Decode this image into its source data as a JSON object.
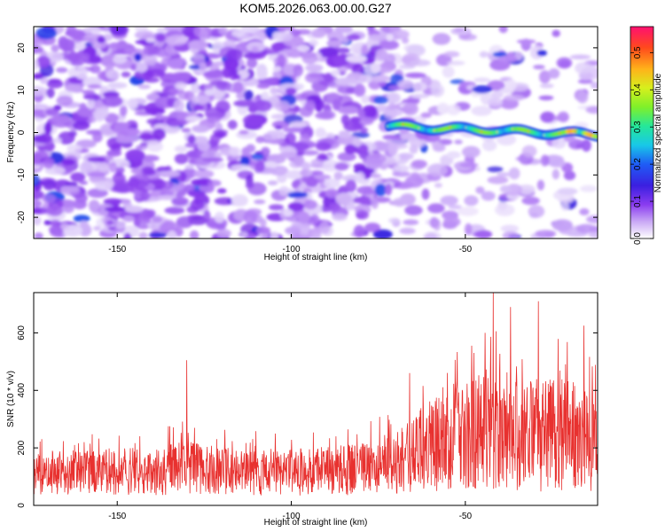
{
  "figure": {
    "title": "KOM5.2026.063.00.00.G27"
  },
  "chart_data": [
    {
      "type": "heatmap",
      "name": "spectrogram",
      "xlabel": "Height of straight line (km)",
      "ylabel": "Frequency (Hz)",
      "xlim": [
        -174,
        -12
      ],
      "ylim": [
        -25,
        25
      ],
      "xticks": [
        -150,
        -100,
        -50
      ],
      "yticks": [
        -20,
        -10,
        0,
        10,
        20
      ],
      "colorbar": {
        "label": "Normalized spectral amplitude",
        "range": [
          0.0,
          0.57
        ],
        "ticks": [
          0.0,
          0.1,
          0.2,
          0.3,
          0.4,
          0.5
        ]
      },
      "signal_band": {
        "x_start": -72,
        "x_end": -12,
        "center_freq_start": 1.5,
        "center_freq_end": -0.5,
        "peak_amplitude": 0.55
      },
      "background": {
        "dense_region_x": [
          -174,
          -75
        ],
        "sparse_region_x": [
          -75,
          -12
        ],
        "typical_amplitude": 0.08
      }
    },
    {
      "type": "line",
      "name": "snr",
      "xlabel": "Height of straight line (km)",
      "ylabel": "SNR (10 * v/v)",
      "xlim": [
        -174,
        -12
      ],
      "ylim": [
        0,
        740
      ],
      "xticks": [
        -150,
        -100,
        -50
      ],
      "yticks": [
        0,
        200,
        400,
        600
      ],
      "color": "#e8312f",
      "envelope": {
        "x": [
          -174,
          -160,
          -140,
          -130,
          -120,
          -100,
          -80,
          -70,
          -65,
          -60,
          -50,
          -45,
          -40,
          -30,
          -20,
          -12
        ],
        "mean": [
          110,
          115,
          120,
          130,
          120,
          115,
          125,
          150,
          180,
          210,
          240,
          270,
          260,
          250,
          240,
          230
        ],
        "spread": [
          90,
          95,
          100,
          110,
          100,
          95,
          105,
          130,
          160,
          190,
          220,
          260,
          260,
          240,
          230,
          210
        ]
      },
      "peaks": [
        {
          "x": -130,
          "y": 505
        },
        {
          "x": -66,
          "y": 460
        },
        {
          "x": -42,
          "y": 740
        },
        {
          "x": -37,
          "y": 690
        },
        {
          "x": -29,
          "y": 710
        },
        {
          "x": -16,
          "y": 625
        }
      ]
    }
  ]
}
